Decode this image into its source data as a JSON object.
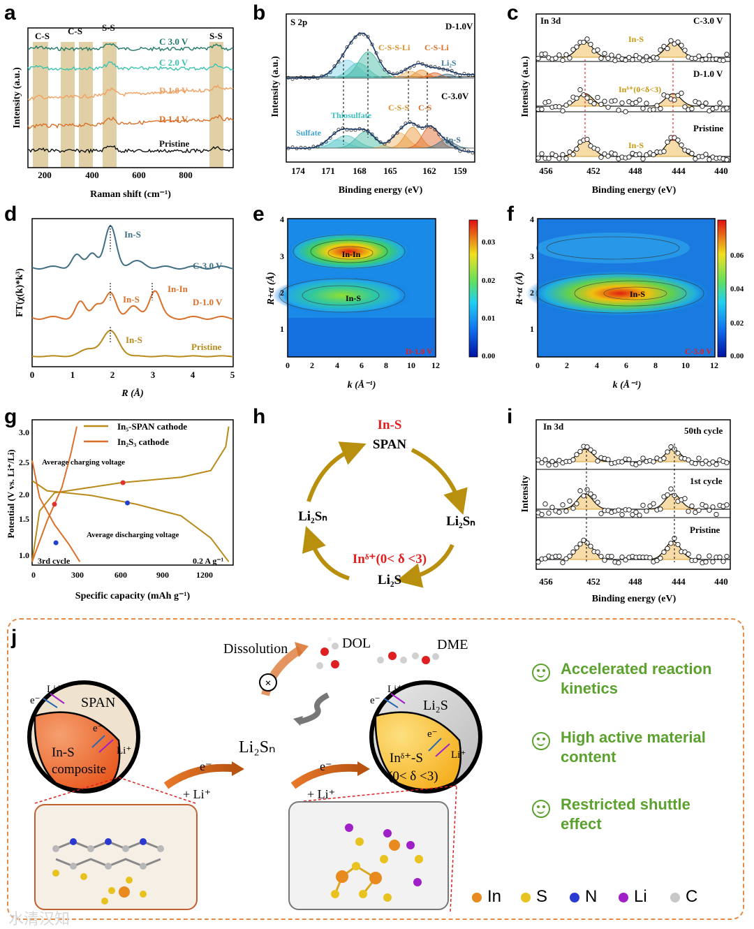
{
  "panel_labels": [
    "a",
    "b",
    "c",
    "d",
    "e",
    "f",
    "g",
    "h",
    "i",
    "j"
  ],
  "panel_a": {
    "ylabel": "Intensity (a.u.)",
    "xlabel": "Raman shift (cm⁻¹)",
    "xticks": [
      "200",
      "400",
      "600",
      "800"
    ],
    "peak_labels": [
      "C-S",
      "C-S",
      "S-S",
      "S-S"
    ],
    "curves": [
      {
        "name": "C 3.0 V",
        "color": "#1f7a68"
      },
      {
        "name": "C 2.0 V",
        "color": "#3cc3b0"
      },
      {
        "name": "D 1.0 V",
        "color": "#f0a060"
      },
      {
        "name": "D 1.4 V",
        "color": "#d9702a"
      },
      {
        "name": "Pristine",
        "color": "#111111"
      }
    ]
  },
  "panel_b": {
    "title": "S 2p",
    "ylabel": "Intensity (a.u.)",
    "xlabel": "Binding energy (eV)",
    "xticks": [
      "174",
      "171",
      "168",
      "165",
      "162",
      "159"
    ],
    "top_label": "D-1.0V",
    "bottom_label": "C-3.0V",
    "annotations": {
      "csli_top": "C-S-S-Li",
      "csli2_top": "C-S-Li",
      "li2s": "Li₂S",
      "thio": "Thiosulfate",
      "sulfate": "Sulfate",
      "css": "C-S-S",
      "cs": "C-S",
      "ins": "In-S"
    }
  },
  "panel_c": {
    "title": "In 3d",
    "ylabel": "Intensity (a.u.)",
    "xlabel": "Binding energy (eV)",
    "xticks": [
      "456",
      "452",
      "448",
      "444",
      "440"
    ],
    "labels": [
      "C-3.0 V",
      "D-1.0 V",
      "Pristine"
    ],
    "ins": "In-S",
    "indelta": "Inᵟ⁺(0<δ<3)"
  },
  "panel_d": {
    "ylabel": "FT(χ(k)*k³)",
    "xlabel": "R (Å)",
    "xticks": [
      "0",
      "1",
      "2",
      "3",
      "4",
      "5"
    ],
    "curves": [
      {
        "name": "C-3.0 V",
        "color": "#3f6e82"
      },
      {
        "name": "D-1.0 V",
        "color": "#d9702a"
      },
      {
        "name": "Pristine",
        "color": "#b88a1a"
      }
    ],
    "annotations": [
      "In-S",
      "In-S",
      "In-In",
      "In-S"
    ]
  },
  "panel_e": {
    "ylabel": "R+α (Å)",
    "xlabel": "k (Å⁻¹)",
    "xticks": [
      "0",
      "2",
      "4",
      "6",
      "8",
      "10",
      "12"
    ],
    "yticks": [
      "1",
      "2",
      "3",
      "4"
    ],
    "cbar": [
      "0.03",
      "0.02",
      "0.01",
      "0.00"
    ],
    "tag": "D-1.0 V",
    "labels": [
      "In-In",
      "In-S"
    ]
  },
  "panel_f": {
    "ylabel": "R+α (Å)",
    "xlabel": "k (Å⁻¹)",
    "xticks": [
      "0",
      "2",
      "4",
      "6",
      "8",
      "10",
      "12"
    ],
    "yticks": [
      "1",
      "2",
      "3",
      "4"
    ],
    "cbar": [
      "0.06",
      "0.04",
      "0.02",
      "0.00"
    ],
    "tag": "C-3.0 V",
    "labels": [
      "In-S"
    ]
  },
  "panel_g": {
    "ylabel": "Potential (V vs. Li⁺/Li)",
    "xlabel": "Specific capacity (mAh g⁻¹)",
    "xticks": [
      "0",
      "300",
      "600",
      "900",
      "1200"
    ],
    "yticks": [
      "1.0",
      "1.5",
      "2.0",
      "2.5",
      "3.0"
    ],
    "legend": [
      "In₅-SPAN cathode",
      "In₂S₃ cathode"
    ],
    "colors": [
      "#b88a1a",
      "#d9702a"
    ],
    "notes": [
      "Average charging voltage",
      "Average discharging voltage",
      "3rd cycle",
      "0.2 A g⁻¹"
    ]
  },
  "panel_h": {
    "top_red": "In-S",
    "top": "SPAN",
    "right": "Li₂Sₙ",
    "left": "Li₂Sₙ",
    "bottom_red": "Inᵟ⁺(0< δ <3)",
    "bottom": "Li₂S"
  },
  "panel_i": {
    "title": "In 3d",
    "ylabel": "Intensity",
    "xlabel": "Binding energy (eV)",
    "xticks": [
      "456",
      "452",
      "448",
      "444",
      "440"
    ],
    "labels": [
      "50th cycle",
      "1st cycle",
      "Pristine"
    ]
  },
  "panel_j": {
    "dissolution": "Dissolution",
    "dol": "DOL",
    "dme": "DME",
    "li2sn": "Li₂Sₙ",
    "left_particle": {
      "shell": "SPAN",
      "core_line1": "In-S",
      "core_line2": "composite",
      "li": "Li⁺",
      "e": "e⁻"
    },
    "right_particle": {
      "shell": "Li₂S",
      "core_line1": "Inᵟ⁺-S",
      "core_line2": "(0< δ <3)",
      "li": "Li⁺",
      "e": "e⁻"
    },
    "arrow_e": "e⁻",
    "arrow_li": "+ Li⁺",
    "benefits": [
      "Accelerated reaction kinetics",
      "High active material content",
      "Restricted shuttle effect"
    ],
    "legend": [
      {
        "label": "In",
        "color": "#e88a1e"
      },
      {
        "label": "S",
        "color": "#e8c21e"
      },
      {
        "label": "N",
        "color": "#2a3ad0"
      },
      {
        "label": "Li",
        "color": "#a020c8"
      },
      {
        "label": "C",
        "color": "#c8c8c8"
      }
    ]
  },
  "watermark": "水清汉知",
  "chart_data": [
    {
      "type": "line",
      "panel": "a",
      "xlabel": "Raman shift (cm⁻¹)",
      "ylabel": "Intensity (a.u.)",
      "xlim": [
        130,
        1000
      ],
      "series": [
        {
          "name": "C 3.0 V"
        },
        {
          "name": "C 2.0 V"
        },
        {
          "name": "D 1.0 V"
        },
        {
          "name": "D 1.4 V"
        },
        {
          "name": "Pristine"
        }
      ],
      "highlight_bands": [
        [
          140,
          210
        ],
        [
          285,
          340
        ],
        [
          355,
          410
        ],
        [
          465,
          530
        ],
        [
          905,
          965
        ]
      ]
    },
    {
      "type": "line",
      "panel": "d",
      "xlabel": "R (Å)",
      "ylabel": "FT(χ(k)*k³)",
      "xlim": [
        0,
        5
      ],
      "series": [
        {
          "name": "C-3.0 V",
          "peaks": [
            1.95
          ]
        },
        {
          "name": "D-1.0 V",
          "peaks": [
            1.95,
            3.05
          ]
        },
        {
          "name": "Pristine",
          "peaks": [
            1.95
          ]
        }
      ]
    },
    {
      "type": "line",
      "panel": "g",
      "xlabel": "Specific capacity (mAh g⁻¹)",
      "ylabel": "Potential (V vs. Li⁺/Li)",
      "xlim": [
        0,
        1350
      ],
      "ylim": [
        0.95,
        3.1
      ],
      "series": [
        {
          "name": "In₅-SPAN cathode",
          "charge": [
            [
              0,
              1.0
            ],
            [
              50,
              1.75
            ],
            [
              150,
              2.02
            ],
            [
              600,
              2.17
            ],
            [
              1000,
              2.25
            ],
            [
              1200,
              2.35
            ],
            [
              1300,
              2.7
            ],
            [
              1320,
              3.0
            ]
          ],
          "discharge": [
            [
              0,
              2.2
            ],
            [
              100,
              2.05
            ],
            [
              400,
              1.98
            ],
            [
              700,
              1.85
            ],
            [
              1000,
              1.68
            ],
            [
              1200,
              1.35
            ],
            [
              1320,
              1.0
            ]
          ]
        },
        {
          "name": "In₂S₃ cathode",
          "charge": [
            [
              0,
              1.0
            ],
            [
              100,
              1.6
            ],
            [
              200,
              2.1
            ],
            [
              260,
              2.6
            ],
            [
              300,
              3.0
            ]
          ],
          "discharge": [
            [
              0,
              2.5
            ],
            [
              50,
              1.95
            ],
            [
              150,
              1.55
            ],
            [
              250,
              1.25
            ],
            [
              320,
              1.0
            ]
          ]
        }
      ]
    }
  ]
}
